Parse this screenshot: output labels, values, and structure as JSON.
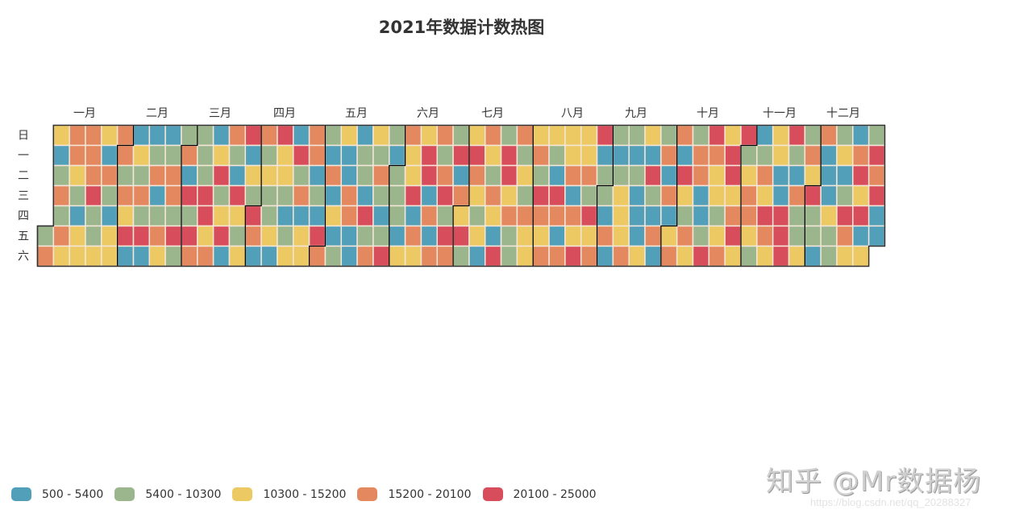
{
  "title": "2021年数据计数热图",
  "colors": {
    "B": "#529fba",
    "G": "#9bb68c",
    "Y": "#ecc962",
    "O": "#e4885f",
    "R": "#d84d5c"
  },
  "legend": [
    {
      "key": "B",
      "label": "500 - 5400"
    },
    {
      "key": "G",
      "label": "5400 - 10300"
    },
    {
      "key": "Y",
      "label": "10300 - 15200"
    },
    {
      "key": "O",
      "label": "15200 - 20100"
    },
    {
      "key": "R",
      "label": "20100 - 25000"
    }
  ],
  "watermark": {
    "main": "知乎 @Mr数据杨",
    "url": "https://blog.csdn.net/qq_20288327"
  },
  "chart_data": {
    "type": "heatmap",
    "subtype": "calendar",
    "title": "2021年数据计数热图",
    "year": 2021,
    "day_labels": [
      "日",
      "一",
      "二",
      "三",
      "四",
      "五",
      "六"
    ],
    "month_labels": [
      "一月",
      "二月",
      "三月",
      "四月",
      "五月",
      "六月",
      "七月",
      "八月",
      "九月",
      "十月",
      "十一月",
      "十二月"
    ],
    "visual_map": {
      "type": "piecewise",
      "min": 500,
      "max": 25000,
      "pieces": [
        "500 - 5400",
        "5400 - 10300",
        "10300 - 15200",
        "15200 - 20100",
        "20100 - 25000"
      ]
    },
    "week_columns": [
      "-----GO",
      "YBGOGOY",
      "OOYGBYY",
      "OOORGGY",
      "YBOGBYY",
      "OOGOYRB",
      "BYGOGRB",
      "BGOBGOY",
      "BGOOGRG",
      "GOBRGRO",
      "GGGRRYO",
      "BYRGYRB",
      "OGBRYGY",
      "RBYGROB",
      "OGYGGYB",
      "RYYGBGY",
      "BRGOBYY",
      "OOBGBRO",
      "GBOBYBG",
      "YBBOOBB",
      "BGGBRGO",
      "YGOGBGR",
      "GBGGGBY",
      "OYYRBOY",
      "YRRBOBO",
      "OGORGRO",
      "GRBOYRG",
      "YROYGYB",
      "OYGOYBR",
      "GRRYOGG",
      "OGYGOYY",
      "YOGROYO",
      "YGBROBO",
      "YYOBOYR",
      "YYOGRYO",
      "RBGGBOB",
      "GBGYYYO",
      "GBGBBBY",
      "YBRGBOB",
      "GOBOBYO",
      "OBRYGOY",
      "GOOBBGR",
      "ROYYGYO",
      "YRRYORY",
      "RGYOOYG",
      "BGOYROY",
      "YYBBRRR",
      "RGBOGGY",
      "GOYRGGB",
      "OBBBYGG",
      "GYBGROY",
      "BORYRBY",
      "GRORBB-"
    ]
  }
}
